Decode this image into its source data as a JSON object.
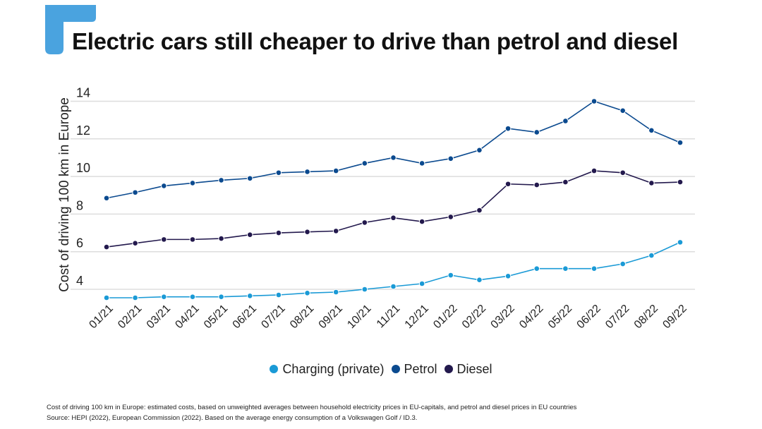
{
  "title": "Electric cars still cheaper to drive than petrol and diesel",
  "chart_data": {
    "type": "line",
    "title": "Electric cars still cheaper to drive than petrol and diesel",
    "ylabel": "Cost of driving 100 km in Europe",
    "xlabel": "",
    "ylim": [
      3.3,
      14.4
    ],
    "yticks": [
      4,
      6,
      8,
      10,
      12,
      14
    ],
    "grid": true,
    "legend": "bottom",
    "categories": [
      "01/21",
      "02/21",
      "03/21",
      "04/21",
      "05/21",
      "06/21",
      "07/21",
      "08/21",
      "09/21",
      "10/21",
      "11/21",
      "12/21",
      "01/22",
      "02/22",
      "03/22",
      "04/22",
      "05/22",
      "06/22",
      "07/22",
      "08/22",
      "09/22"
    ],
    "series": [
      {
        "name": "Charging (private)",
        "color": "#1a9ad6",
        "values": [
          3.55,
          3.55,
          3.6,
          3.6,
          3.6,
          3.65,
          3.7,
          3.8,
          3.85,
          4.0,
          4.15,
          4.3,
          4.75,
          4.5,
          4.7,
          5.1,
          5.1,
          5.1,
          5.35,
          5.8,
          6.5
        ]
      },
      {
        "name": "Petrol",
        "color": "#0b4a8f",
        "values": [
          8.85,
          9.15,
          9.5,
          9.65,
          9.8,
          9.9,
          10.2,
          10.25,
          10.3,
          10.7,
          11.0,
          10.7,
          10.95,
          11.4,
          12.55,
          12.35,
          12.95,
          14.0,
          13.5,
          12.45,
          11.8
        ]
      },
      {
        "name": "Diesel",
        "color": "#23194d",
        "values": [
          6.25,
          6.45,
          6.65,
          6.65,
          6.7,
          6.9,
          7.0,
          7.05,
          7.1,
          7.55,
          7.8,
          7.6,
          7.85,
          8.2,
          9.6,
          9.55,
          9.7,
          10.3,
          10.2,
          9.65,
          9.7
        ]
      }
    ]
  },
  "footnote": {
    "line1": "Cost of driving 100 km in Europe: estimated costs, based on unweighted averages between household electricity prices in EU-capitals, and petrol and diesel prices in EU countries",
    "line2": "Source: HEPI (2022), European Commission (2022). Based on the average energy consumption of a Volkswagen Golf / ID.3."
  },
  "colors": {
    "logo": "#4aa3df",
    "grid": "#dddddd"
  }
}
